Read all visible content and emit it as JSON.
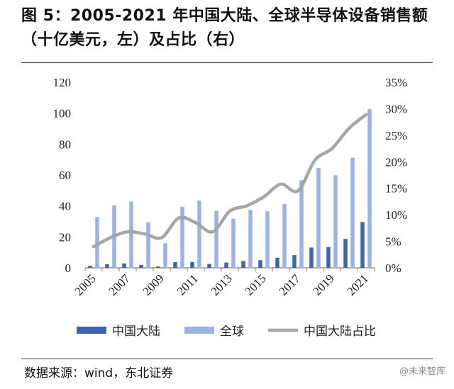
{
  "header": {
    "title": "图 5：2005-2021 年中国大陆、全球半导体设备销售额（十亿美元，左）及占比（右）"
  },
  "chart_data": {
    "type": "bar",
    "categories": [
      "2005",
      "2006",
      "2007",
      "2008",
      "2009",
      "2010",
      "2011",
      "2012",
      "2013",
      "2014",
      "2015",
      "2016",
      "2017",
      "2018",
      "2019",
      "2020",
      "2021"
    ],
    "x_tick_labels": [
      "2005",
      "2007",
      "2009",
      "2011",
      "2013",
      "2015",
      "2017",
      "2019",
      "2021"
    ],
    "series": [
      {
        "name": "中国大陆",
        "kind": "bar",
        "axis": "left",
        "color": "#3b65ad",
        "values": [
          1.3,
          2.3,
          2.9,
          1.9,
          0.9,
          3.7,
          3.7,
          2.5,
          3.4,
          4.4,
          4.9,
          6.5,
          8.2,
          13.1,
          13.5,
          18.7,
          29.6
        ]
      },
      {
        "name": "全球",
        "kind": "bar",
        "axis": "left",
        "color": "#9bb3e0",
        "values": [
          32.9,
          40.4,
          42.8,
          29.5,
          15.9,
          39.5,
          43.5,
          36.9,
          31.8,
          37.5,
          36.5,
          41.2,
          56.6,
          64.5,
          59.8,
          71.2,
          102.6
        ]
      },
      {
        "name": "中国大陆占比",
        "kind": "line",
        "axis": "right",
        "color": "#a6a6a6",
        "values": [
          4.0,
          5.7,
          6.8,
          6.4,
          5.7,
          9.4,
          8.5,
          6.8,
          10.7,
          11.7,
          13.4,
          15.8,
          14.5,
          20.3,
          22.5,
          26.3,
          28.9
        ]
      }
    ],
    "left_axis": {
      "ylim": [
        0,
        120
      ],
      "ticks": [
        "0",
        "20",
        "40",
        "60",
        "80",
        "100",
        "120"
      ]
    },
    "right_axis": {
      "ylim": [
        0,
        35
      ],
      "ticks": [
        "0%",
        "5%",
        "10%",
        "15%",
        "20%",
        "25%",
        "30%",
        "35%"
      ]
    },
    "legend_position": "bottom",
    "grid": false
  },
  "footer": {
    "source": "数据来源：wind，东北证券",
    "watermark": "@未来智库"
  }
}
